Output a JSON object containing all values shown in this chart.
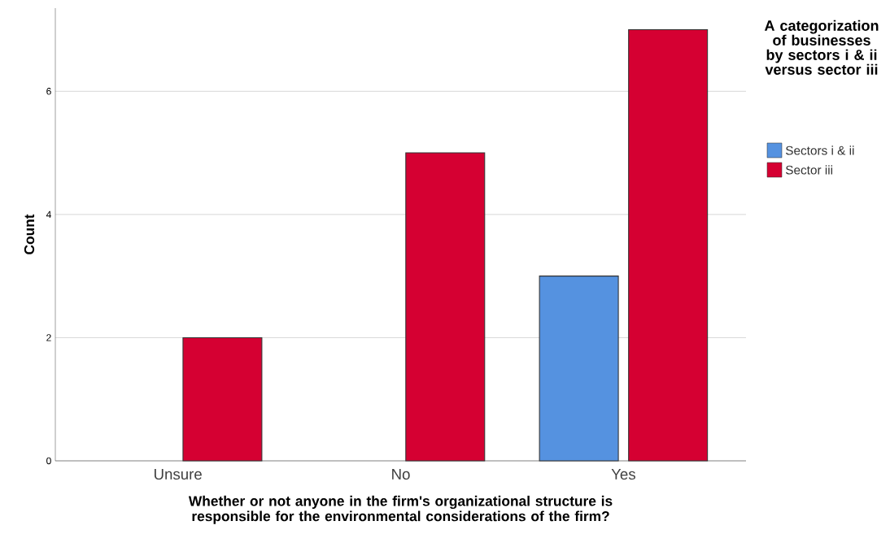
{
  "chart_data": {
    "type": "bar",
    "xlabel": "Whether or not anyone in the firm's organizational structure is responsible for the environmental considerations of the firm?",
    "ylabel": "Count",
    "legend_title": "A categorization of businesses by sectors i & ii versus sector iii",
    "categories": [
      "Unsure",
      "No",
      "Yes"
    ],
    "series": [
      {
        "name": "Sectors i & ii",
        "color": "#5592e0",
        "values": [
          null,
          null,
          3
        ]
      },
      {
        "name": "Sector iii",
        "color": "#d50032",
        "values": [
          2,
          5,
          7
        ]
      }
    ],
    "ylim": [
      0,
      7.35
    ],
    "yticks": [
      0,
      2,
      4,
      6
    ],
    "grid": "y",
    "legend": "right"
  }
}
